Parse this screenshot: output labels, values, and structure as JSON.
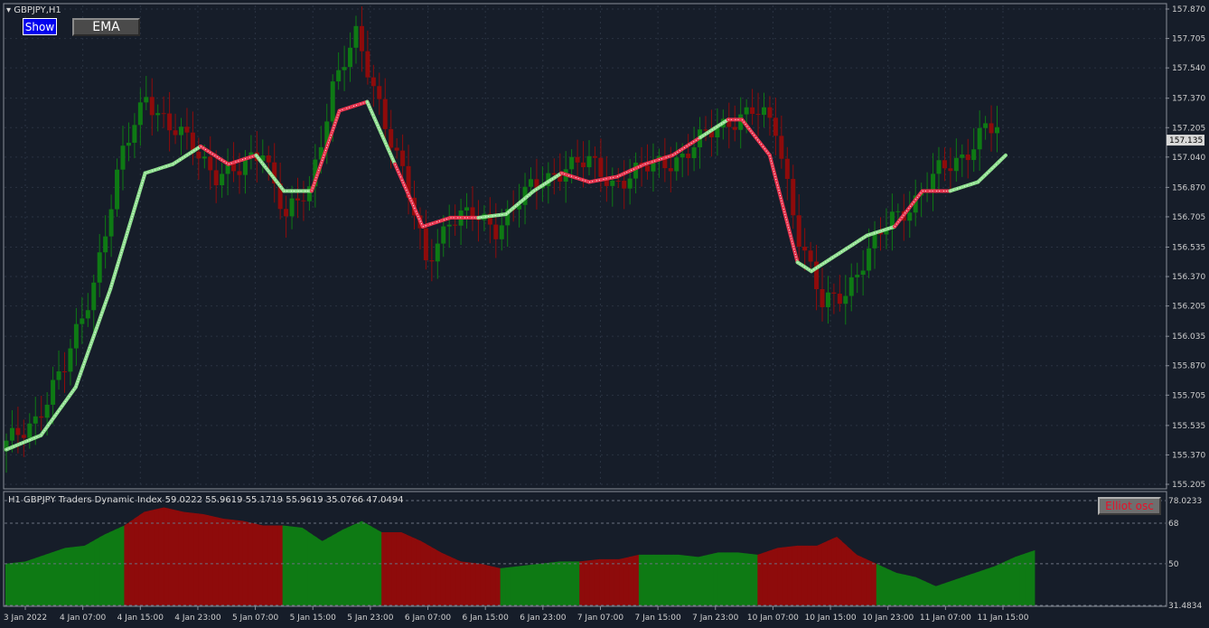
{
  "symbol_menu": "▾",
  "symbol_label": "GBPJPY,H1",
  "buttons": {
    "show": "Show",
    "ema": "EMA",
    "elliot": "Elliot osc"
  },
  "indicator_label": "H1 GBPJPY Traders Dynamic Index 59.0222 55.9619 55.1719 55.9619 35.0766 47.0494",
  "colors": {
    "background": "#161d29",
    "bull": "#0e7a14",
    "bear": "#8e0b0b",
    "grid": "#2a3342",
    "ema_up": "#8fe08f",
    "ema_down": "#e8354f",
    "axis_text": "#d0d0d0"
  },
  "chart_data": [
    {
      "type": "candlestick",
      "price_ticks": [
        "157.870",
        "157.705",
        "157.540",
        "157.370",
        "157.205",
        "157.040",
        "156.870",
        "156.705",
        "156.535",
        "156.370",
        "156.205",
        "156.035",
        "155.870",
        "155.705",
        "155.535",
        "155.370",
        "155.205"
      ],
      "current_price": "157.135",
      "ylim": [
        155.205,
        157.87
      ],
      "time_labels": [
        "3 Jan 2022",
        "4 Jan 07:00",
        "4 Jan 15:00",
        "4 Jan 23:00",
        "5 Jan 07:00",
        "5 Jan 15:00",
        "5 Jan 23:00",
        "6 Jan 07:00",
        "6 Jan 15:00",
        "6 Jan 23:00",
        "7 Jan 07:00",
        "7 Jan 15:00",
        "7 Jan 23:00",
        "10 Jan 07:00",
        "10 Jan 15:00",
        "10 Jan 23:00",
        "11 Jan 07:00",
        "11 Jan 15:00"
      ],
      "close_path": [
        [
          0,
          155.42
        ],
        [
          5,
          155.58
        ],
        [
          10,
          155.85
        ],
        [
          15,
          156.35
        ],
        [
          20,
          157.05
        ],
        [
          24,
          157.4
        ],
        [
          28,
          157.2
        ],
        [
          32,
          157.1
        ],
        [
          36,
          156.95
        ],
        [
          40,
          156.95
        ],
        [
          44,
          157.1
        ],
        [
          48,
          156.7
        ],
        [
          52,
          156.85
        ],
        [
          56,
          157.45
        ],
        [
          60,
          157.7
        ],
        [
          64,
          157.35
        ],
        [
          68,
          156.95
        ],
        [
          72,
          156.45
        ],
        [
          76,
          156.7
        ],
        [
          80,
          156.7
        ],
        [
          84,
          156.65
        ],
        [
          88,
          156.8
        ],
        [
          92,
          156.9
        ],
        [
          96,
          157.0
        ],
        [
          100,
          157.0
        ],
        [
          104,
          156.9
        ],
        [
          108,
          156.95
        ],
        [
          112,
          157.0
        ],
        [
          116,
          157.05
        ],
        [
          120,
          157.15
        ],
        [
          124,
          157.25
        ],
        [
          128,
          157.3
        ],
        [
          132,
          157.2
        ],
        [
          136,
          156.6
        ],
        [
          140,
          156.2
        ],
        [
          144,
          156.3
        ],
        [
          148,
          156.5
        ],
        [
          152,
          156.7
        ],
        [
          156,
          156.8
        ],
        [
          160,
          156.95
        ],
        [
          164,
          157.05
        ],
        [
          168,
          157.2
        ],
        [
          170,
          157.18
        ]
      ],
      "ema_path": [
        [
          0,
          155.4
        ],
        [
          5,
          155.48
        ],
        [
          10,
          155.75
        ],
        [
          15,
          156.3
        ],
        [
          20,
          156.95
        ],
        [
          24,
          157.0
        ],
        [
          28,
          157.1
        ],
        [
          32,
          157.0
        ],
        [
          36,
          157.05
        ],
        [
          40,
          156.85
        ],
        [
          44,
          156.85
        ],
        [
          48,
          157.3
        ],
        [
          52,
          157.35
        ],
        [
          56,
          157.0
        ],
        [
          60,
          156.65
        ],
        [
          64,
          156.7
        ],
        [
          68,
          156.7
        ],
        [
          72,
          156.72
        ],
        [
          76,
          156.85
        ],
        [
          80,
          156.95
        ],
        [
          84,
          156.9
        ],
        [
          88,
          156.93
        ],
        [
          92,
          157.0
        ],
        [
          96,
          157.05
        ],
        [
          100,
          157.15
        ],
        [
          104,
          157.25
        ],
        [
          106,
          157.25
        ],
        [
          110,
          157.05
        ],
        [
          114,
          156.45
        ],
        [
          116,
          156.4
        ],
        [
          120,
          156.5
        ],
        [
          124,
          156.6
        ],
        [
          128,
          156.65
        ],
        [
          132,
          156.85
        ],
        [
          136,
          156.85
        ],
        [
          140,
          156.9
        ],
        [
          144,
          157.05
        ]
      ],
      "ema_bear_ranges": [
        [
          28,
          36
        ],
        [
          44,
          52
        ],
        [
          56,
          68
        ],
        [
          80,
          100
        ],
        [
          104,
          114
        ],
        [
          128,
          136
        ]
      ]
    },
    {
      "type": "area",
      "name": "Traders Dynamic Index",
      "ticks": [
        "78.0233",
        "68",
        "50",
        "31.4834"
      ],
      "ylim": [
        31.4834,
        78.0233
      ],
      "x": [
        0,
        4,
        8,
        12,
        16,
        20,
        24,
        28,
        32,
        36,
        40,
        44,
        48,
        52,
        56,
        60,
        64,
        68,
        72,
        76,
        80,
        84,
        88,
        92,
        96,
        100,
        104,
        108,
        112,
        116,
        120,
        124,
        128,
        132,
        136,
        140,
        144,
        148,
        152,
        156,
        160,
        164,
        168,
        172,
        176,
        180,
        184,
        188,
        192,
        196,
        200,
        204,
        208
      ],
      "values": [
        50,
        51,
        54,
        57,
        58,
        63,
        67,
        73,
        75,
        73,
        72,
        70,
        69,
        67,
        67,
        66,
        60,
        65,
        69,
        64,
        64,
        60,
        55,
        51,
        50,
        48,
        49,
        50,
        51,
        51,
        52,
        52,
        54,
        54,
        54,
        53,
        55,
        55,
        54,
        57,
        58,
        58,
        62,
        54,
        50,
        46,
        44,
        40,
        43,
        46,
        49,
        53,
        56
      ],
      "bear_ranges": [
        [
          24,
          56
        ],
        [
          76,
          100
        ],
        [
          116,
          128
        ],
        [
          152,
          176
        ]
      ]
    }
  ]
}
